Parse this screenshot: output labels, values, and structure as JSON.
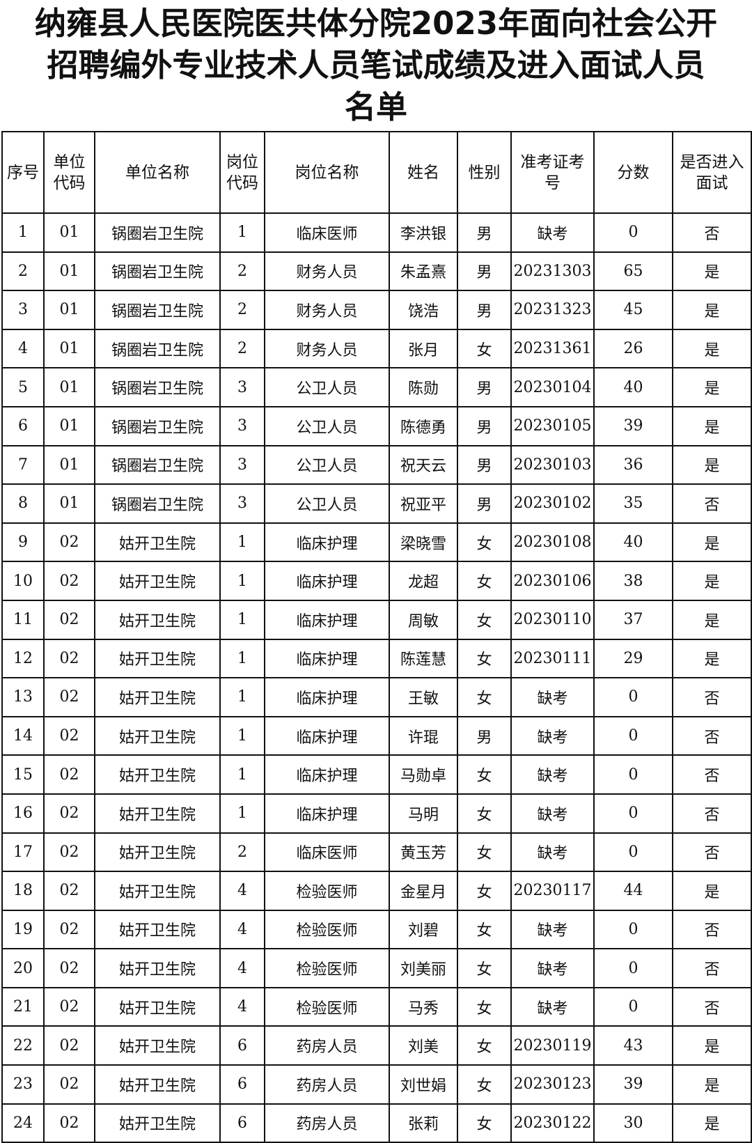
{
  "title": {
    "line1": "纳雍县人民医院医共体分院2023年面向社会公开",
    "line2": "招聘编外专业技术人员笔试成绩及进入面试人员",
    "line3": "名单"
  },
  "headers": [
    "序号",
    "单位代码",
    "单位名称",
    "岗位代码",
    "岗位名称",
    "姓名",
    "性别",
    "准考证考号",
    "分数",
    "是否进入面试"
  ],
  "rows": [
    [
      "1",
      "01",
      "锅圈岩卫生院",
      "1",
      "临床医师",
      "李洪银",
      "男",
      "缺考",
      "0",
      "否"
    ],
    [
      "2",
      "01",
      "锅圈岩卫生院",
      "2",
      "财务人员",
      "朱孟熹",
      "男",
      "20231303",
      "65",
      "是"
    ],
    [
      "3",
      "01",
      "锅圈岩卫生院",
      "2",
      "财务人员",
      "饶浩",
      "男",
      "20231323",
      "45",
      "是"
    ],
    [
      "4",
      "01",
      "锅圈岩卫生院",
      "2",
      "财务人员",
      "张月",
      "女",
      "20231361",
      "26",
      "是"
    ],
    [
      "5",
      "01",
      "锅圈岩卫生院",
      "3",
      "公卫人员",
      "陈勋",
      "男",
      "20230104",
      "40",
      "是"
    ],
    [
      "6",
      "01",
      "锅圈岩卫生院",
      "3",
      "公卫人员",
      "陈德勇",
      "男",
      "20230105",
      "39",
      "是"
    ],
    [
      "7",
      "01",
      "锅圈岩卫生院",
      "3",
      "公卫人员",
      "祝天云",
      "男",
      "20230103",
      "36",
      "是"
    ],
    [
      "8",
      "01",
      "锅圈岩卫生院",
      "3",
      "公卫人员",
      "祝亚平",
      "男",
      "20230102",
      "35",
      "否"
    ],
    [
      "9",
      "02",
      "姑开卫生院",
      "1",
      "临床护理",
      "梁晓雪",
      "女",
      "20230108",
      "40",
      "是"
    ],
    [
      "10",
      "02",
      "姑开卫生院",
      "1",
      "临床护理",
      "龙超",
      "女",
      "20230106",
      "38",
      "是"
    ],
    [
      "11",
      "02",
      "姑开卫生院",
      "1",
      "临床护理",
      "周敏",
      "女",
      "20230110",
      "37",
      "是"
    ],
    [
      "12",
      "02",
      "姑开卫生院",
      "1",
      "临床护理",
      "陈莲慧",
      "女",
      "20230111",
      "29",
      "是"
    ],
    [
      "13",
      "02",
      "姑开卫生院",
      "1",
      "临床护理",
      "王敏",
      "女",
      "缺考",
      "0",
      "否"
    ],
    [
      "14",
      "02",
      "姑开卫生院",
      "1",
      "临床护理",
      "许琨",
      "男",
      "缺考",
      "0",
      "否"
    ],
    [
      "15",
      "02",
      "姑开卫生院",
      "1",
      "临床护理",
      "马勋卓",
      "女",
      "缺考",
      "0",
      "否"
    ],
    [
      "16",
      "02",
      "姑开卫生院",
      "1",
      "临床护理",
      "马明",
      "女",
      "缺考",
      "0",
      "否"
    ],
    [
      "17",
      "02",
      "姑开卫生院",
      "2",
      "临床医师",
      "黄玉芳",
      "女",
      "缺考",
      "0",
      "否"
    ],
    [
      "18",
      "02",
      "姑开卫生院",
      "4",
      "检验医师",
      "金星月",
      "女",
      "20230117",
      "44",
      "是"
    ],
    [
      "19",
      "02",
      "姑开卫生院",
      "4",
      "检验医师",
      "刘碧",
      "女",
      "缺考",
      "0",
      "否"
    ],
    [
      "20",
      "02",
      "姑开卫生院",
      "4",
      "检验医师",
      "刘美丽",
      "女",
      "缺考",
      "0",
      "否"
    ],
    [
      "21",
      "02",
      "姑开卫生院",
      "4",
      "检验医师",
      "马秀",
      "女",
      "缺考",
      "0",
      "否"
    ],
    [
      "22",
      "02",
      "姑开卫生院",
      "6",
      "药房人员",
      "刘美",
      "女",
      "20230119",
      "43",
      "是"
    ],
    [
      "23",
      "02",
      "姑开卫生院",
      "6",
      "药房人员",
      "刘世娟",
      "女",
      "20230123",
      "39",
      "是"
    ],
    [
      "24",
      "02",
      "姑开卫生院",
      "6",
      "药房人员",
      "张莉",
      "女",
      "20230122",
      "30",
      "是"
    ]
  ]
}
